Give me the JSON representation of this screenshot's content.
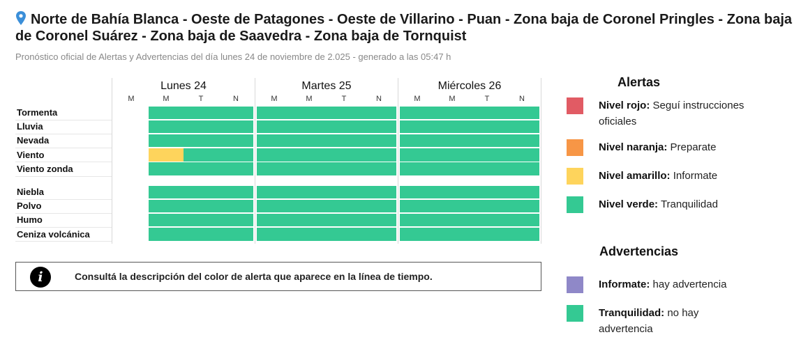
{
  "header": {
    "title": "Norte de Bahía Blanca - Oeste de Patagones - Oeste de Villarino - Puan - Zona baja de Coronel Pringles - Zona baja de Coronel Suárez - Zona baja de Saavedra - Zona baja de Tornquist",
    "subtitle": "Pronóstico oficial de Alertas y Advertencias del día lunes 24 de noviembre de 2.025 - generado a las 05:47 h",
    "pin_icon": "location-pin-icon"
  },
  "timeline": {
    "days": [
      {
        "label": "Lunes 24",
        "slots": [
          "M",
          "M",
          "T",
          "N"
        ]
      },
      {
        "label": "Martes 25",
        "slots": [
          "M",
          "M",
          "T",
          "N"
        ]
      },
      {
        "label": "Miércoles 26",
        "slots": [
          "M",
          "M",
          "T",
          "N"
        ]
      }
    ],
    "alert_rows": [
      {
        "label": "Tormenta",
        "levels": [
          "none",
          "verde",
          "verde",
          "verde",
          "verde",
          "verde",
          "verde",
          "verde",
          "verde",
          "verde",
          "verde",
          "verde"
        ]
      },
      {
        "label": "Lluvia",
        "levels": [
          "none",
          "verde",
          "verde",
          "verde",
          "verde",
          "verde",
          "verde",
          "verde",
          "verde",
          "verde",
          "verde",
          "verde"
        ]
      },
      {
        "label": "Nevada",
        "levels": [
          "none",
          "verde",
          "verde",
          "verde",
          "verde",
          "verde",
          "verde",
          "verde",
          "verde",
          "verde",
          "verde",
          "verde"
        ]
      },
      {
        "label": "Viento",
        "levels": [
          "none",
          "amarillo",
          "verde",
          "verde",
          "verde",
          "verde",
          "verde",
          "verde",
          "verde",
          "verde",
          "verde",
          "verde"
        ]
      },
      {
        "label": "Viento zonda",
        "levels": [
          "none",
          "verde",
          "verde",
          "verde",
          "verde",
          "verde",
          "verde",
          "verde",
          "verde",
          "verde",
          "verde",
          "verde"
        ]
      }
    ],
    "warning_rows": [
      {
        "label": "Niebla",
        "levels": [
          "none",
          "verde",
          "verde",
          "verde",
          "verde",
          "verde",
          "verde",
          "verde",
          "verde",
          "verde",
          "verde",
          "verde"
        ]
      },
      {
        "label": "Polvo",
        "levels": [
          "none",
          "verde",
          "verde",
          "verde",
          "verde",
          "verde",
          "verde",
          "verde",
          "verde",
          "verde",
          "verde",
          "verde"
        ]
      },
      {
        "label": "Humo",
        "levels": [
          "none",
          "verde",
          "verde",
          "verde",
          "verde",
          "verde",
          "verde",
          "verde",
          "verde",
          "verde",
          "verde",
          "verde"
        ]
      },
      {
        "label": "Ceniza volcánica",
        "levels": [
          "none",
          "verde",
          "verde",
          "verde",
          "verde",
          "verde",
          "verde",
          "verde",
          "verde",
          "verde",
          "verde",
          "verde"
        ]
      }
    ]
  },
  "info_box": {
    "icon": "info-icon",
    "text": "Consultá la descripción del color de alerta que aparece en la línea de tiempo."
  },
  "legend": {
    "alerts_heading": "Alertas",
    "alerts": [
      {
        "level": "Nivel rojo:",
        "desc": "Seguí instrucciones oficiales",
        "color": "#e15b64"
      },
      {
        "level": "Nivel naranja:",
        "desc": "Preparate",
        "color": "#f79646"
      },
      {
        "level": "Nivel amarillo:",
        "desc": "Informate",
        "color": "#fed45c"
      },
      {
        "level": "Nivel verde:",
        "desc": "Tranquilidad",
        "color": "#34c993"
      }
    ],
    "warnings_heading": "Advertencias",
    "warnings": [
      {
        "level": "Informate:",
        "desc": "hay advertencia",
        "color": "#8f88c8"
      },
      {
        "level": "Tranquilidad:",
        "desc": "no hay advertencia",
        "color": "#34c993"
      }
    ]
  }
}
